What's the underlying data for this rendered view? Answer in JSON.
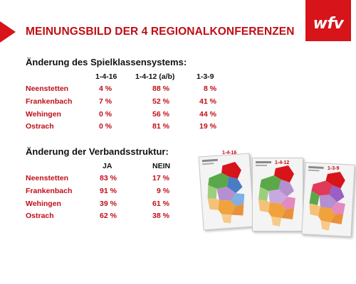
{
  "header": {
    "title": "MEINUNGSBILD DER 4 REGIONALKONFERENZEN",
    "logo_text": "wfv"
  },
  "section1": {
    "heading": "Änderung des Spielklassensystems:",
    "columns": [
      "1-4-16",
      "1-4-12 (a/b)",
      "1-3-9"
    ],
    "rows": [
      {
        "name": "Neenstetten",
        "values": [
          "4 %",
          "88 %",
          "8 %"
        ]
      },
      {
        "name": "Frankenbach",
        "values": [
          "7 %",
          "52 %",
          "41 %"
        ]
      },
      {
        "name": "Wehingen",
        "values": [
          "0 %",
          "56 %",
          "44 %"
        ]
      },
      {
        "name": "Ostrach",
        "values": [
          "0 %",
          "81 %",
          "19 %"
        ]
      }
    ]
  },
  "section2": {
    "heading": "Änderung der Verbandsstruktur:",
    "columns": [
      "JA",
      "NEIN"
    ],
    "rows": [
      {
        "name": "Neenstetten",
        "values": [
          "83 %",
          "17 %"
        ]
      },
      {
        "name": "Frankenbach",
        "values": [
          "91 %",
          "9 %"
        ]
      },
      {
        "name": "Wehingen",
        "values": [
          "39 %",
          "61 %"
        ]
      },
      {
        "name": "Ostrach",
        "values": [
          "62 %",
          "38 %"
        ]
      }
    ]
  },
  "maps": {
    "labels": [
      "1-4-16",
      "1-4-12",
      "1-3-9"
    ]
  },
  "colors": {
    "accent_red": "#c00d16",
    "brand_red": "#d7141a"
  }
}
